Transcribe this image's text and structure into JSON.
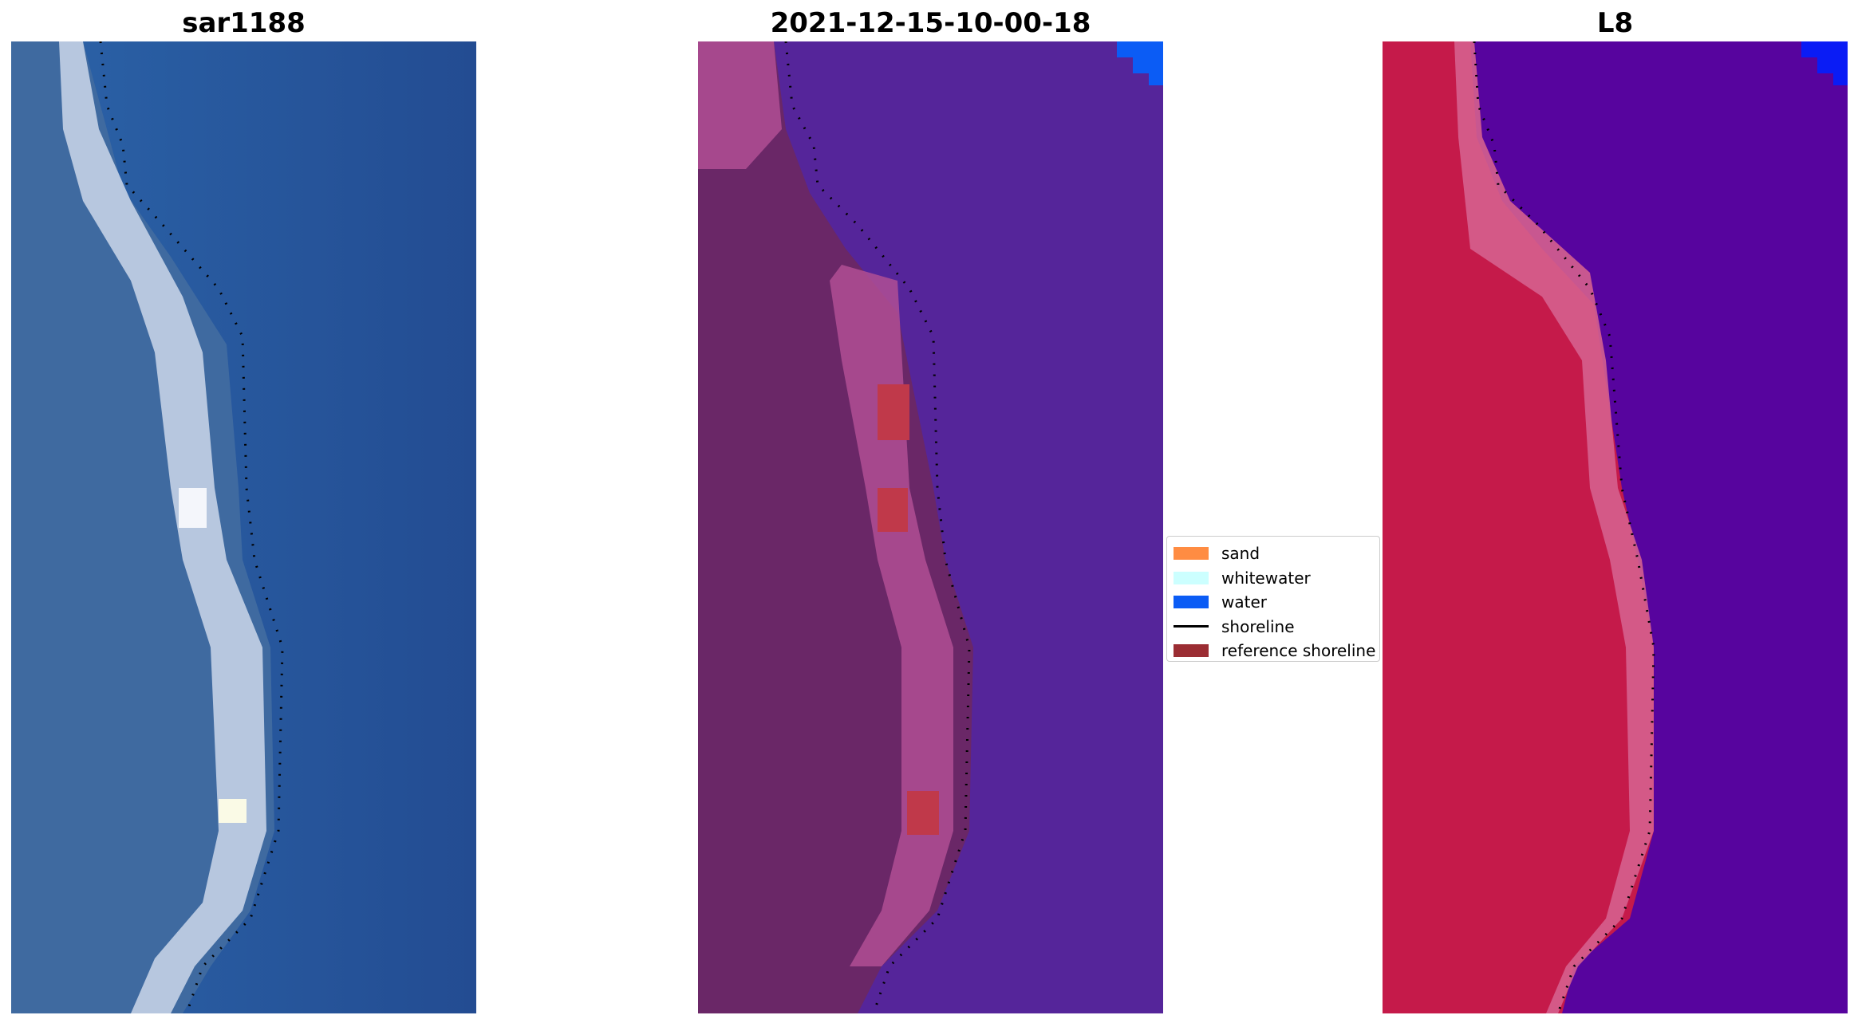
{
  "panels": [
    {
      "title": "sar1188",
      "image": "rgb-satellite-image"
    },
    {
      "title": "2021-12-15-10-00-18",
      "image": "classified-false-color-image"
    },
    {
      "title": "L8",
      "image": "false-color-ndwi-image"
    }
  ],
  "legend": {
    "items": [
      {
        "label": "sand",
        "color": "#ff8c42",
        "kind": "patch"
      },
      {
        "label": "whitewater",
        "color": "#ccffff",
        "kind": "patch"
      },
      {
        "label": "water",
        "color": "#0b5cf5",
        "kind": "patch"
      },
      {
        "label": "shoreline",
        "color": "#000000",
        "kind": "line"
      },
      {
        "label": "reference shoreline",
        "color": "#9b2d33",
        "kind": "patch"
      }
    ]
  },
  "colors": {
    "rgb_water": "#2250a0",
    "rgb_land": "#3f6aa0",
    "rgb_beach": "#dde4f2",
    "class_water": "#55259a",
    "class_land": "#6a2767",
    "class_beach": "#b04f94",
    "class_sand_hits": "#c0394a",
    "ndwi_water": "#57049e",
    "ndwi_land": "#c51a4a",
    "ndwi_beach": "#d5608e"
  }
}
